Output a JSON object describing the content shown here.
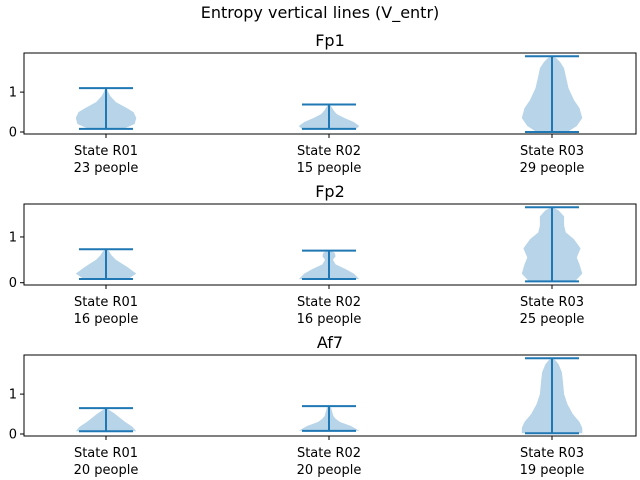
{
  "figure_title": "Entropy vertical lines (V_entr)",
  "colors": {
    "body": "#b8d4e8",
    "line": "#1f77b4"
  },
  "chart_data": [
    {
      "type": "violin",
      "title": "Fp1",
      "ylim": [
        -0.05,
        1.98
      ],
      "yticks": [
        0,
        1
      ],
      "groups": [
        {
          "label": "State R01",
          "count": "23 people",
          "min": 0.08,
          "max": 1.1,
          "profile": [
            [
              0.08,
              0.32
            ],
            [
              0.2,
              0.52
            ],
            [
              0.35,
              0.55
            ],
            [
              0.5,
              0.5
            ],
            [
              0.6,
              0.38
            ],
            [
              0.75,
              0.18
            ],
            [
              0.9,
              0.08
            ],
            [
              1.0,
              0.04
            ],
            [
              1.1,
              0.01
            ]
          ]
        },
        {
          "label": "State R02",
          "count": "15 people",
          "min": 0.08,
          "max": 0.69,
          "profile": [
            [
              0.08,
              0.5
            ],
            [
              0.15,
              0.55
            ],
            [
              0.25,
              0.45
            ],
            [
              0.35,
              0.28
            ],
            [
              0.45,
              0.14
            ],
            [
              0.55,
              0.08
            ],
            [
              0.62,
              0.05
            ],
            [
              0.69,
              0.01
            ]
          ]
        },
        {
          "label": "State R03",
          "count": "29 people",
          "min": 0.0,
          "max": 1.9,
          "profile": [
            [
              0.0,
              0.28
            ],
            [
              0.15,
              0.45
            ],
            [
              0.35,
              0.55
            ],
            [
              0.6,
              0.5
            ],
            [
              0.8,
              0.4
            ],
            [
              1.1,
              0.3
            ],
            [
              1.4,
              0.25
            ],
            [
              1.6,
              0.22
            ],
            [
              1.75,
              0.15
            ],
            [
              1.85,
              0.08
            ],
            [
              1.9,
              0.01
            ]
          ]
        }
      ]
    },
    {
      "type": "violin",
      "title": "Fp2",
      "ylim": [
        -0.05,
        1.72
      ],
      "yticks": [
        0,
        1
      ],
      "groups": [
        {
          "label": "State R01",
          "count": "16 people",
          "min": 0.08,
          "max": 0.73,
          "profile": [
            [
              0.08,
              0.4
            ],
            [
              0.2,
              0.55
            ],
            [
              0.35,
              0.38
            ],
            [
              0.5,
              0.18
            ],
            [
              0.6,
              0.1
            ],
            [
              0.68,
              0.06
            ],
            [
              0.73,
              0.01
            ]
          ]
        },
        {
          "label": "State R02",
          "count": "16 people",
          "min": 0.08,
          "max": 0.7,
          "profile": [
            [
              0.08,
              0.55
            ],
            [
              0.2,
              0.45
            ],
            [
              0.3,
              0.3
            ],
            [
              0.4,
              0.12
            ],
            [
              0.5,
              0.07
            ],
            [
              0.58,
              0.12
            ],
            [
              0.66,
              0.1
            ],
            [
              0.7,
              0.01
            ]
          ]
        },
        {
          "label": "State R03",
          "count": "25 people",
          "min": 0.03,
          "max": 1.65,
          "profile": [
            [
              0.03,
              0.42
            ],
            [
              0.2,
              0.55
            ],
            [
              0.4,
              0.5
            ],
            [
              0.55,
              0.45
            ],
            [
              0.75,
              0.52
            ],
            [
              0.95,
              0.4
            ],
            [
              1.1,
              0.25
            ],
            [
              1.25,
              0.22
            ],
            [
              1.45,
              0.22
            ],
            [
              1.58,
              0.12
            ],
            [
              1.65,
              0.01
            ]
          ]
        }
      ]
    },
    {
      "type": "violin",
      "title": "Af7",
      "ylim": [
        -0.05,
        1.98
      ],
      "yticks": [
        0,
        1
      ],
      "groups": [
        {
          "label": "State R01",
          "count": "20 people",
          "min": 0.07,
          "max": 0.65,
          "profile": [
            [
              0.07,
              0.55
            ],
            [
              0.18,
              0.48
            ],
            [
              0.3,
              0.35
            ],
            [
              0.42,
              0.24
            ],
            [
              0.52,
              0.15
            ],
            [
              0.6,
              0.06
            ],
            [
              0.65,
              0.01
            ]
          ]
        },
        {
          "label": "State R02",
          "count": "20 people",
          "min": 0.08,
          "max": 0.7,
          "profile": [
            [
              0.08,
              0.55
            ],
            [
              0.2,
              0.4
            ],
            [
              0.3,
              0.2
            ],
            [
              0.38,
              0.12
            ],
            [
              0.45,
              0.08
            ],
            [
              0.55,
              0.06
            ],
            [
              0.65,
              0.04
            ],
            [
              0.7,
              0.01
            ]
          ]
        },
        {
          "label": "State R03",
          "count": "19 people",
          "min": 0.02,
          "max": 1.9,
          "profile": [
            [
              0.02,
              0.55
            ],
            [
              0.15,
              0.55
            ],
            [
              0.3,
              0.5
            ],
            [
              0.5,
              0.38
            ],
            [
              0.75,
              0.28
            ],
            [
              1.0,
              0.22
            ],
            [
              1.3,
              0.2
            ],
            [
              1.55,
              0.18
            ],
            [
              1.75,
              0.12
            ],
            [
              1.85,
              0.06
            ],
            [
              1.9,
              0.01
            ]
          ]
        }
      ]
    }
  ]
}
